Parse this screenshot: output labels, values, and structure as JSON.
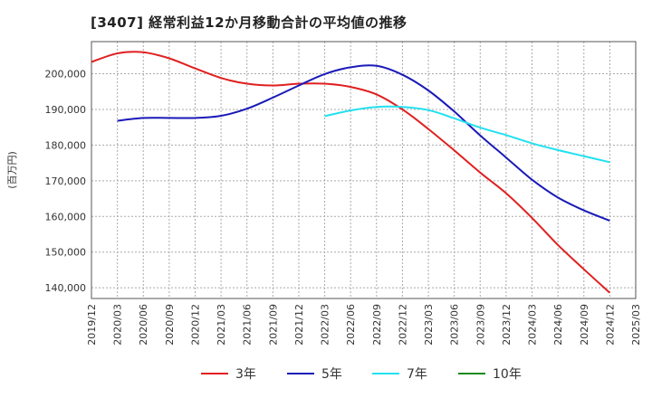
{
  "chart_data": {
    "type": "line",
    "title": "[3407]  経常利益12か月移動合計の平均値の推移",
    "ylabel": "(百万円)",
    "xlabel": "",
    "ylim": [
      137000,
      209000
    ],
    "yticks": [
      140000,
      150000,
      160000,
      170000,
      180000,
      190000,
      200000
    ],
    "ytick_labels": [
      "140,000",
      "150,000",
      "160,000",
      "170,000",
      "180,000",
      "190,000",
      "200,000"
    ],
    "x_tick_labels": [
      "2019/12",
      "2020/03",
      "2020/06",
      "2020/09",
      "2020/12",
      "2021/03",
      "2021/06",
      "2021/09",
      "2021/12",
      "2022/03",
      "2022/06",
      "2022/09",
      "2022/12",
      "2023/03",
      "2023/06",
      "2023/09",
      "2023/12",
      "2024/03",
      "2024/06",
      "2024/09",
      "2024/12",
      "2025/03"
    ],
    "grid": true,
    "legend_position": "bottom",
    "series": [
      {
        "name": "3年",
        "color": "#e02020",
        "points": [
          [
            "2019/12",
            203300
          ],
          [
            "2020/03",
            205700
          ],
          [
            "2020/06",
            206000
          ],
          [
            "2020/09",
            204300
          ],
          [
            "2020/12",
            201500
          ],
          [
            "2021/03",
            198800
          ],
          [
            "2021/06",
            197200
          ],
          [
            "2021/09",
            196700
          ],
          [
            "2021/12",
            197200
          ],
          [
            "2022/03",
            197200
          ],
          [
            "2022/06",
            196300
          ],
          [
            "2022/09",
            194200
          ],
          [
            "2022/12",
            190000
          ],
          [
            "2023/03",
            184500
          ],
          [
            "2023/06",
            178500
          ],
          [
            "2023/09",
            172300
          ],
          [
            "2023/12",
            166500
          ],
          [
            "2024/03",
            159600
          ],
          [
            "2024/06",
            152000
          ],
          [
            "2024/09",
            145200
          ],
          [
            "2024/12",
            138600
          ]
        ]
      },
      {
        "name": "5年",
        "color": "#1a1ab8",
        "points": [
          [
            "2020/03",
            186800
          ],
          [
            "2020/06",
            187600
          ],
          [
            "2020/09",
            187600
          ],
          [
            "2020/12",
            187600
          ],
          [
            "2021/03",
            188200
          ],
          [
            "2021/06",
            190200
          ],
          [
            "2021/09",
            193300
          ],
          [
            "2021/12",
            196700
          ],
          [
            "2022/03",
            199900
          ],
          [
            "2022/06",
            201800
          ],
          [
            "2022/09",
            202200
          ],
          [
            "2022/12",
            199700
          ],
          [
            "2023/03",
            195300
          ],
          [
            "2023/06",
            189400
          ],
          [
            "2023/09",
            182700
          ],
          [
            "2023/12",
            176500
          ],
          [
            "2024/03",
            170300
          ],
          [
            "2024/06",
            165300
          ],
          [
            "2024/09",
            161700
          ],
          [
            "2024/12",
            158800
          ]
        ]
      },
      {
        "name": "7年",
        "color": "#22e0f0",
        "points": [
          [
            "2022/03",
            188100
          ],
          [
            "2022/06",
            189700
          ],
          [
            "2022/09",
            190700
          ],
          [
            "2022/12",
            190700
          ],
          [
            "2023/03",
            189800
          ],
          [
            "2023/06",
            187500
          ],
          [
            "2023/09",
            184900
          ],
          [
            "2023/12",
            182800
          ],
          [
            "2024/03",
            180500
          ],
          [
            "2024/06",
            178600
          ],
          [
            "2024/09",
            176900
          ],
          [
            "2024/12",
            175200
          ]
        ]
      },
      {
        "name": "10年",
        "color": "#1a8a1a",
        "points": []
      }
    ]
  }
}
